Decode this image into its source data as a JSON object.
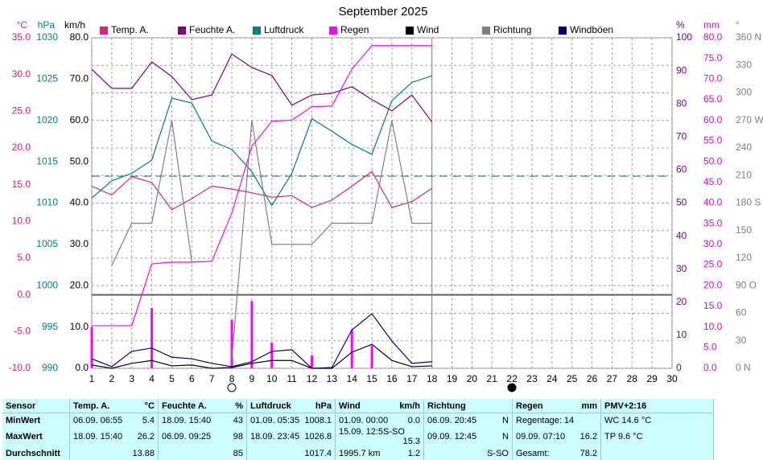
{
  "chart_data": {
    "type": "line",
    "title": "September 2025",
    "x": [
      1,
      2,
      3,
      4,
      5,
      6,
      7,
      8,
      9,
      10,
      11,
      12,
      13,
      14,
      15,
      16,
      17,
      18
    ],
    "xlim": [
      1,
      30
    ],
    "xticks": [
      1,
      2,
      3,
      4,
      5,
      6,
      7,
      8,
      9,
      10,
      11,
      12,
      13,
      14,
      15,
      16,
      17,
      18,
      19,
      20,
      21,
      22,
      23,
      24,
      25,
      26,
      27,
      28,
      29,
      30
    ],
    "grid": true,
    "axes": {
      "temp": {
        "label": "°C",
        "color": "#d0206f",
        "lim": [
          -10,
          35
        ],
        "side": "left",
        "ticks": [
          {
            "value": 35,
            "label": "35.0"
          },
          {
            "value": 30,
            "label": "30.0"
          },
          {
            "value": 25,
            "label": "25.0"
          },
          {
            "value": 20,
            "label": "20.0"
          },
          {
            "value": 15,
            "label": "15.0"
          },
          {
            "value": 10,
            "label": "10.0"
          },
          {
            "value": 5,
            "label": "5.0"
          },
          {
            "value": 0,
            "label": "0.0"
          },
          {
            "value": -5,
            "label": "-5.0"
          },
          {
            "value": -10,
            "label": "-10.0"
          }
        ]
      },
      "hpa": {
        "label": "hPa",
        "color": "#008080",
        "lim": [
          990,
          1030
        ],
        "side": "left",
        "ticks": [
          1030,
          1025,
          1020,
          1015,
          1010,
          1005,
          1000,
          995,
          990
        ]
      },
      "kmh": {
        "label": "km/h",
        "color": "#000000",
        "lim": [
          0,
          80
        ],
        "side": "left",
        "ticks": [
          {
            "value": 80,
            "label": "80.0"
          },
          {
            "value": 70,
            "label": "70.0"
          },
          {
            "value": 60,
            "label": "60.0"
          },
          {
            "value": 50,
            "label": "50.0"
          },
          {
            "value": 40,
            "label": "40.0"
          },
          {
            "value": 30,
            "label": "30.0"
          },
          {
            "value": 20,
            "label": "20.0"
          },
          {
            "value": 10,
            "label": "10.0"
          },
          {
            "value": 0,
            "label": "0.0"
          }
        ]
      },
      "pct": {
        "label": "%",
        "color": "#800080",
        "lim": [
          0,
          100
        ],
        "side": "right",
        "ticks": [
          100,
          90,
          80,
          70,
          60,
          50,
          40,
          30,
          20,
          10,
          0
        ]
      },
      "mm": {
        "label": "mm",
        "color": "#e000e0",
        "lim": [
          0,
          80
        ],
        "side": "right",
        "ticks": [
          {
            "value": 80,
            "label": "80.0"
          },
          {
            "value": 75,
            "label": "75.0"
          },
          {
            "value": 70,
            "label": "70.0"
          },
          {
            "value": 65,
            "label": "65.0"
          },
          {
            "value": 60,
            "label": "60.0"
          },
          {
            "value": 55,
            "label": "55.0"
          },
          {
            "value": 50,
            "label": "50.0"
          },
          {
            "value": 45,
            "label": "45.0"
          },
          {
            "value": 40,
            "label": "40.0"
          },
          {
            "value": 35,
            "label": "35.0"
          },
          {
            "value": 30,
            "label": "30.0"
          },
          {
            "value": 25,
            "label": "25.0"
          },
          {
            "value": 20,
            "label": "20.0"
          },
          {
            "value": 15,
            "label": "15.0"
          },
          {
            "value": 10,
            "label": "10.0"
          },
          {
            "value": 5,
            "label": "5.0"
          },
          {
            "value": 0,
            "label": "0.0"
          }
        ]
      },
      "deg": {
        "label": "°",
        "color": "#808080",
        "lim": [
          0,
          360
        ],
        "side": "right",
        "ticks": [
          {
            "value": 360,
            "label": "360 N"
          },
          {
            "value": 330,
            "label": "330"
          },
          {
            "value": 300,
            "label": "300"
          },
          {
            "value": 270,
            "label": "270 W"
          },
          {
            "value": 240,
            "label": "240"
          },
          {
            "value": 210,
            "label": "210"
          },
          {
            "value": 180,
            "label": "180 S"
          },
          {
            "value": 150,
            "label": "150"
          },
          {
            "value": 120,
            "label": "120"
          },
          {
            "value": 90,
            "label": "90 O"
          },
          {
            "value": 60,
            "label": "60"
          },
          {
            "value": 30,
            "label": "30"
          },
          {
            "value": 0,
            "label": "0 N"
          }
        ]
      }
    },
    "series": [
      {
        "name": "Temp. A.",
        "color": "#e0207f",
        "axis": "temp",
        "type": "line",
        "values": [
          14.8,
          13.6,
          16.1,
          15.3,
          11.6,
          13.1,
          14.8,
          14.4,
          13.9,
          13.3,
          13.5,
          11.9,
          12.9,
          14.8,
          16.8,
          11.9,
          12.7,
          14.5
        ]
      },
      {
        "name": "Feuchte A.",
        "color": "#800080",
        "axis": "pct",
        "type": "line",
        "values": [
          90.5,
          84.7,
          84.7,
          92.7,
          88.3,
          81.3,
          82.7,
          95.1,
          91.0,
          88.6,
          79.6,
          82.7,
          83.2,
          85.2,
          81.3,
          77.9,
          82.7,
          74.5
        ]
      },
      {
        "name": "Luftdruck",
        "color": "#008080",
        "axis": "hpa",
        "type": "line",
        "values": [
          1010.6,
          1012.7,
          1013.6,
          1015.2,
          1022.7,
          1022.1,
          1017.5,
          1016.5,
          1013.8,
          1009.7,
          1013.6,
          1020.2,
          1018.7,
          1017.1,
          1015.9,
          1022.4,
          1024.6,
          1025.4
        ]
      },
      {
        "name": "Regen",
        "color": "#ff00ff",
        "axis": "mm",
        "type": "line",
        "values": [
          10.3,
          10.3,
          10.3,
          25.3,
          25.7,
          25.7,
          25.9,
          37.6,
          53.7,
          59.8,
          60.1,
          63.3,
          63.5,
          72.4,
          78.1,
          78.1,
          78.1,
          78.1
        ],
        "daily": [
          10.0,
          0,
          0,
          14.6,
          0,
          0,
          0,
          11.7,
          16.3,
          6.2,
          0,
          3.1,
          0,
          9.3,
          5.5,
          0,
          0,
          0
        ]
      },
      {
        "name": "Wind",
        "color": "#000000",
        "axis": "kmh",
        "type": "line",
        "values": [
          0.8,
          0,
          1.2,
          1.9,
          0.6,
          0.8,
          0,
          0.2,
          1.2,
          1.9,
          1.9,
          0,
          0,
          3.9,
          5.8,
          1.9,
          0.4,
          0.6
        ]
      },
      {
        "name": "Richtung",
        "color": "#808080",
        "axis": "deg",
        "type": "line",
        "values": [
          null,
          112,
          158,
          158,
          270,
          116,
          null,
          10,
          270,
          135,
          135,
          135,
          158,
          158,
          158,
          270,
          158,
          158
        ]
      },
      {
        "name": "Windböen",
        "color": "#000080",
        "axis": "kmh",
        "type": "line",
        "values": [
          2.3,
          0.4,
          4.1,
          4.9,
          2.7,
          2.3,
          1.2,
          0.4,
          1.6,
          4.1,
          4.5,
          0,
          0.2,
          9.3,
          13.2,
          6.6,
          1.2,
          1.6
        ]
      }
    ],
    "pressure_reference": 1013.25,
    "current_day": 18
  },
  "table": {
    "rows": [
      [
        {
          "l": "Sensor"
        },
        {
          "l": "Temp. A.",
          "r": "°C"
        },
        {
          "l": "Feuchte A.",
          "r": "%"
        },
        {
          "l": "Luftdruck",
          "r": "hPa"
        },
        {
          "l": "Wind",
          "r": "km/h"
        },
        {
          "l": "Richtung"
        },
        {
          "l": "Regen",
          "r": "mm"
        },
        {
          "l": "PMV+2:16"
        }
      ],
      [
        {
          "l": "MinWert"
        },
        {
          "l": "06.09.  06:55",
          "r": "5.4"
        },
        {
          "l": "18.09.  15:40",
          "r": "43"
        },
        {
          "l": "01.09.  05:35",
          "r": "1008.1"
        },
        {
          "l": "01.09.  00:00",
          "r": "0.0"
        },
        {
          "l": "06.09.  20:45",
          "r": "N"
        },
        {
          "l": "Regentage: 14"
        },
        {
          "l": "WC 14.6 °C"
        }
      ],
      [
        {
          "l": "MaxWert"
        },
        {
          "l": "18.09.  15:40",
          "r": "26.2"
        },
        {
          "l": "06.09.  09:25",
          "r": "98"
        },
        {
          "l": "18.09.  23:45",
          "r": "1026.8"
        },
        {
          "l": "15.09.  12:5S-SO",
          "r": "15.3"
        },
        {
          "l": "09.09.  12:45",
          "r": "N"
        },
        {
          "l": "09.09.  07:10",
          "r": "16.2"
        },
        {
          "l": "TP 9.6 °C"
        }
      ],
      [
        {
          "l": "Durchschnitt"
        },
        {
          "r": "13.88"
        },
        {
          "r": "85"
        },
        {
          "r": "1017.4"
        },
        {
          "l": "1995.7 km",
          "r": "1.2"
        },
        {
          "r": "S-SO"
        },
        {
          "l": "Gesamt:",
          "r": "78.2"
        },
        {}
      ]
    ]
  }
}
